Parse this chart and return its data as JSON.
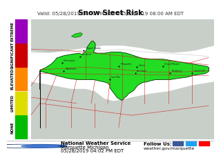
{
  "title": "Snow Sleet Risk",
  "subtitle": "Valid: 05/28/2019 04:00 PM EDT - 05/29/2019 08:00 AM EDT",
  "nws_office": "National Weather Service",
  "nws_location": "Marquette Michigan",
  "issue_time": "05/28/2019 04:02 PM EDT",
  "follow_text": "Follow Us:",
  "website": "weather.gov/marquette",
  "legend_labels": [
    "NONE",
    "LIMITED",
    "ELEVATED",
    "SIGNIFICANT",
    "EXTREME"
  ],
  "legend_colors": [
    "#00bb00",
    "#dddd00",
    "#ff8800",
    "#cc0000",
    "#9900bb"
  ],
  "bg_color": "#ffffff",
  "map_bg": "#adbfbf",
  "land_color": "#c8cfc8",
  "green_color": "#22dd22",
  "title_fontsize": 7.5,
  "subtitle_fontsize": 5.0,
  "footer_fontsize": 5.0,
  "legend_fontsize": 4.0,
  "road_color": "#cc2222",
  "border_color": "#880000",
  "state_line_color": "#000000"
}
